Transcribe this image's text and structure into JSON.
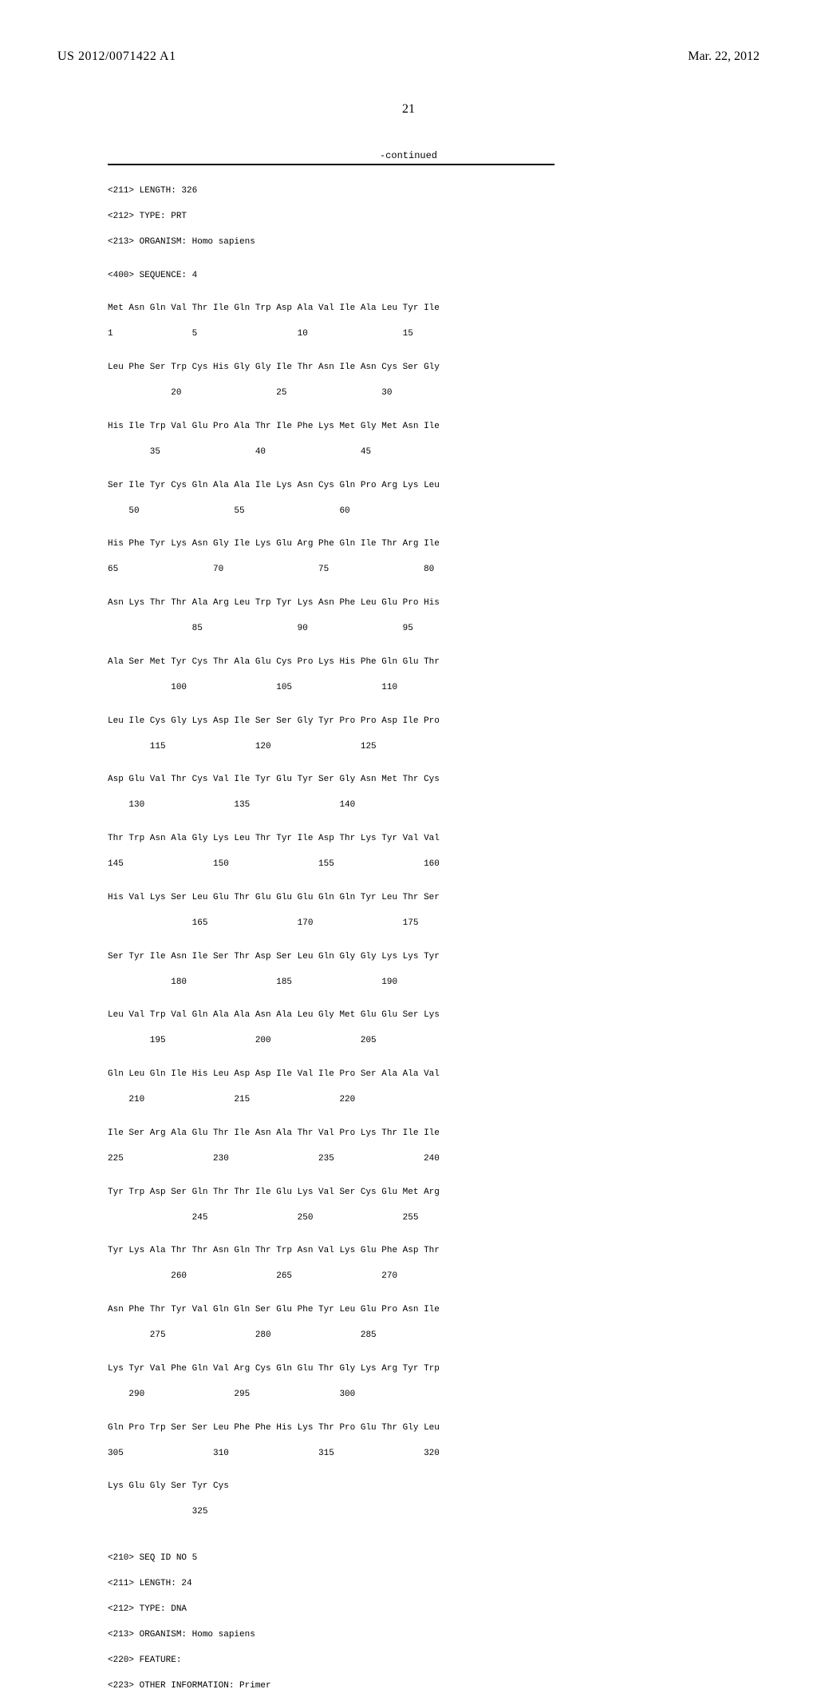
{
  "header": {
    "pub_number": "US 2012/0071422 A1",
    "pub_date": "Mar. 22, 2012",
    "page_number": "21",
    "continued_label": "-continued"
  },
  "seq_meta_4": {
    "length": "<211> LENGTH: 326",
    "type": "<212> TYPE: PRT",
    "organism": "<213> ORGANISM: Homo sapiens",
    "seq_label": "<400> SEQUENCE: 4"
  },
  "sequence_rows": [
    {
      "aa": "Met Asn Gln Val Thr Ile Gln Trp Asp Ala Val Ile Ala Leu Tyr Ile",
      "pos": "1               5                   10                  15"
    },
    {
      "aa": "Leu Phe Ser Trp Cys His Gly Gly Ile Thr Asn Ile Asn Cys Ser Gly",
      "pos": "            20                  25                  30"
    },
    {
      "aa": "His Ile Trp Val Glu Pro Ala Thr Ile Phe Lys Met Gly Met Asn Ile",
      "pos": "        35                  40                  45"
    },
    {
      "aa": "Ser Ile Tyr Cys Gln Ala Ala Ile Lys Asn Cys Gln Pro Arg Lys Leu",
      "pos": "    50                  55                  60"
    },
    {
      "aa": "His Phe Tyr Lys Asn Gly Ile Lys Glu Arg Phe Gln Ile Thr Arg Ile",
      "pos": "65                  70                  75                  80"
    },
    {
      "aa": "Asn Lys Thr Thr Ala Arg Leu Trp Tyr Lys Asn Phe Leu Glu Pro His",
      "pos": "                85                  90                  95"
    },
    {
      "aa": "Ala Ser Met Tyr Cys Thr Ala Glu Cys Pro Lys His Phe Gln Glu Thr",
      "pos": "            100                 105                 110"
    },
    {
      "aa": "Leu Ile Cys Gly Lys Asp Ile Ser Ser Gly Tyr Pro Pro Asp Ile Pro",
      "pos": "        115                 120                 125"
    },
    {
      "aa": "Asp Glu Val Thr Cys Val Ile Tyr Glu Tyr Ser Gly Asn Met Thr Cys",
      "pos": "    130                 135                 140"
    },
    {
      "aa": "Thr Trp Asn Ala Gly Lys Leu Thr Tyr Ile Asp Thr Lys Tyr Val Val",
      "pos": "145                 150                 155                 160"
    },
    {
      "aa": "His Val Lys Ser Leu Glu Thr Glu Glu Glu Gln Gln Tyr Leu Thr Ser",
      "pos": "                165                 170                 175"
    },
    {
      "aa": "Ser Tyr Ile Asn Ile Ser Thr Asp Ser Leu Gln Gly Gly Lys Lys Tyr",
      "pos": "            180                 185                 190"
    },
    {
      "aa": "Leu Val Trp Val Gln Ala Ala Asn Ala Leu Gly Met Glu Glu Ser Lys",
      "pos": "        195                 200                 205"
    },
    {
      "aa": "Gln Leu Gln Ile His Leu Asp Asp Ile Val Ile Pro Ser Ala Ala Val",
      "pos": "    210                 215                 220"
    },
    {
      "aa": "Ile Ser Arg Ala Glu Thr Ile Asn Ala Thr Val Pro Lys Thr Ile Ile",
      "pos": "225                 230                 235                 240"
    },
    {
      "aa": "Tyr Trp Asp Ser Gln Thr Thr Ile Glu Lys Val Ser Cys Glu Met Arg",
      "pos": "                245                 250                 255"
    },
    {
      "aa": "Tyr Lys Ala Thr Thr Asn Gln Thr Trp Asn Val Lys Glu Phe Asp Thr",
      "pos": "            260                 265                 270"
    },
    {
      "aa": "Asn Phe Thr Tyr Val Gln Gln Ser Glu Phe Tyr Leu Glu Pro Asn Ile",
      "pos": "        275                 280                 285"
    },
    {
      "aa": "Lys Tyr Val Phe Gln Val Arg Cys Gln Glu Thr Gly Lys Arg Tyr Trp",
      "pos": "    290                 295                 300"
    },
    {
      "aa": "Gln Pro Trp Ser Ser Leu Phe Phe His Lys Thr Pro Glu Thr Gly Leu",
      "pos": "305                 310                 315                 320"
    },
    {
      "aa": "Lys Glu Gly Ser Tyr Cys",
      "pos": "                325"
    }
  ],
  "seq_meta_5": {
    "seq_id": "<210> SEQ ID NO 5",
    "length": "<211> LENGTH: 24",
    "type": "<212> TYPE: DNA",
    "organism": "<213> ORGANISM: Homo sapiens",
    "feature": "<220> FEATURE:",
    "other": "<223> OTHER INFORMATION: Primer"
  }
}
